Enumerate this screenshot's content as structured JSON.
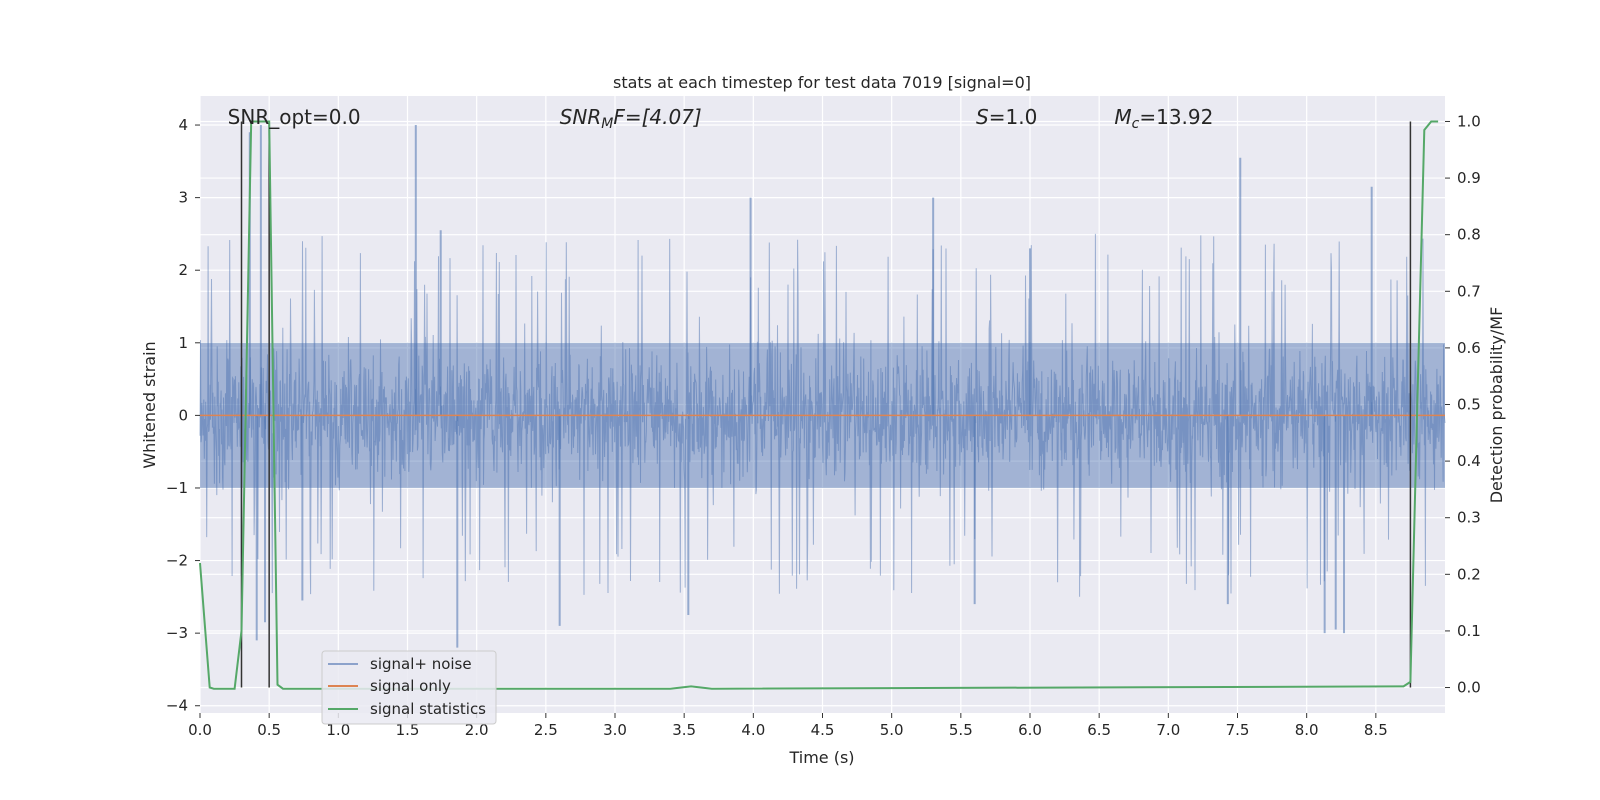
{
  "chart_data": {
    "type": "line",
    "title": "stats at each timestep for test data 7019 [signal=0]",
    "xlabel": "Time (s)",
    "ylabel": "Whitened strain",
    "y2label": "Detection probability/MF",
    "xlim": [
      0.0,
      9.0
    ],
    "ylim": [
      -4.1,
      4.4
    ],
    "y2lim": [
      -0.045,
      1.045
    ],
    "x_ticks": [
      0.0,
      0.5,
      1.0,
      1.5,
      2.0,
      2.5,
      3.0,
      3.5,
      4.0,
      4.5,
      5.0,
      5.5,
      6.0,
      6.5,
      7.0,
      7.5,
      8.0,
      8.5
    ],
    "y_ticks": [
      -4,
      -3,
      -2,
      -1,
      0,
      1,
      2,
      3,
      4
    ],
    "y_tick_labels": [
      "−4",
      "−3",
      "−2",
      "−1",
      "0",
      "1",
      "2",
      "3",
      "4"
    ],
    "y2_ticks": [
      0.0,
      0.1,
      0.2,
      0.3,
      0.4,
      0.5,
      0.6,
      0.7,
      0.8,
      0.9,
      1.0
    ],
    "grid": true,
    "legend_position": "lower-left",
    "series": [
      {
        "name": "signal+ noise",
        "color": "#4c72b0",
        "kind": "noise",
        "band": [
          -1.0,
          1.0
        ],
        "typical_range": [
          -2.0,
          2.0
        ],
        "spikes": [
          {
            "x": 1.56,
            "y": 4.0
          },
          {
            "x": 0.44,
            "y": 4.0
          },
          {
            "x": 0.36,
            "y": 3.9
          },
          {
            "x": 7.52,
            "y": 3.55
          },
          {
            "x": 8.47,
            "y": 3.15
          },
          {
            "x": 5.3,
            "y": 3.0
          },
          {
            "x": 3.98,
            "y": 3.0
          },
          {
            "x": 1.86,
            "y": -3.2
          },
          {
            "x": 0.47,
            "y": -2.85
          },
          {
            "x": 0.41,
            "y": -3.1
          },
          {
            "x": 8.13,
            "y": -3.0
          },
          {
            "x": 8.27,
            "y": -3.0
          },
          {
            "x": 8.21,
            "y": -2.95
          },
          {
            "x": 7.43,
            "y": -2.6
          },
          {
            "x": 2.6,
            "y": -2.9
          },
          {
            "x": 3.53,
            "y": -2.75
          },
          {
            "x": 5.6,
            "y": -2.6
          },
          {
            "x": 1.74,
            "y": 2.55
          },
          {
            "x": 0.74,
            "y": -2.55
          },
          {
            "x": 6.0,
            "y": 2.3
          }
        ]
      },
      {
        "name": "signal only",
        "color": "#dd8452",
        "x": [
          0.0,
          9.0
        ],
        "y": [
          0.0,
          0.0
        ]
      },
      {
        "name": "signal statistics",
        "color": "#55a868",
        "axis": "right",
        "x": [
          0.0,
          0.07,
          0.1,
          0.2,
          0.25,
          0.3,
          0.37,
          0.45,
          0.5,
          0.56,
          0.6,
          0.7,
          3.4,
          3.55,
          3.7,
          8.7,
          8.75,
          8.8,
          8.85,
          8.9,
          8.95
        ],
        "y": [
          0.22,
          0.0,
          -0.002,
          -0.002,
          -0.002,
          0.1,
          1.0,
          1.0,
          1.0,
          0.005,
          -0.002,
          -0.002,
          -0.002,
          0.002,
          -0.002,
          0.002,
          0.01,
          0.5,
          0.985,
          1.0,
          1.0
        ]
      }
    ],
    "vertical_lines": [
      {
        "x": 0.3,
        "color": "#333333"
      },
      {
        "x": 0.5,
        "color": "#333333"
      },
      {
        "x": 8.75,
        "color": "#333333"
      }
    ],
    "annotations": [
      {
        "id": "snr-opt",
        "text": "SNR_opt=0.0",
        "x": 0.2
      },
      {
        "id": "snr-mf",
        "prefix": "SNR",
        "sub": "M",
        "suffix": "F=[4.07]",
        "x": 2.6
      },
      {
        "id": "s-value",
        "prefix": "S",
        "sub": "",
        "suffix": "=1.0",
        "x": 5.61
      },
      {
        "id": "mc-value",
        "prefix": "M",
        "sub": "c",
        "suffix": "=13.92",
        "x": 6.61
      }
    ]
  }
}
